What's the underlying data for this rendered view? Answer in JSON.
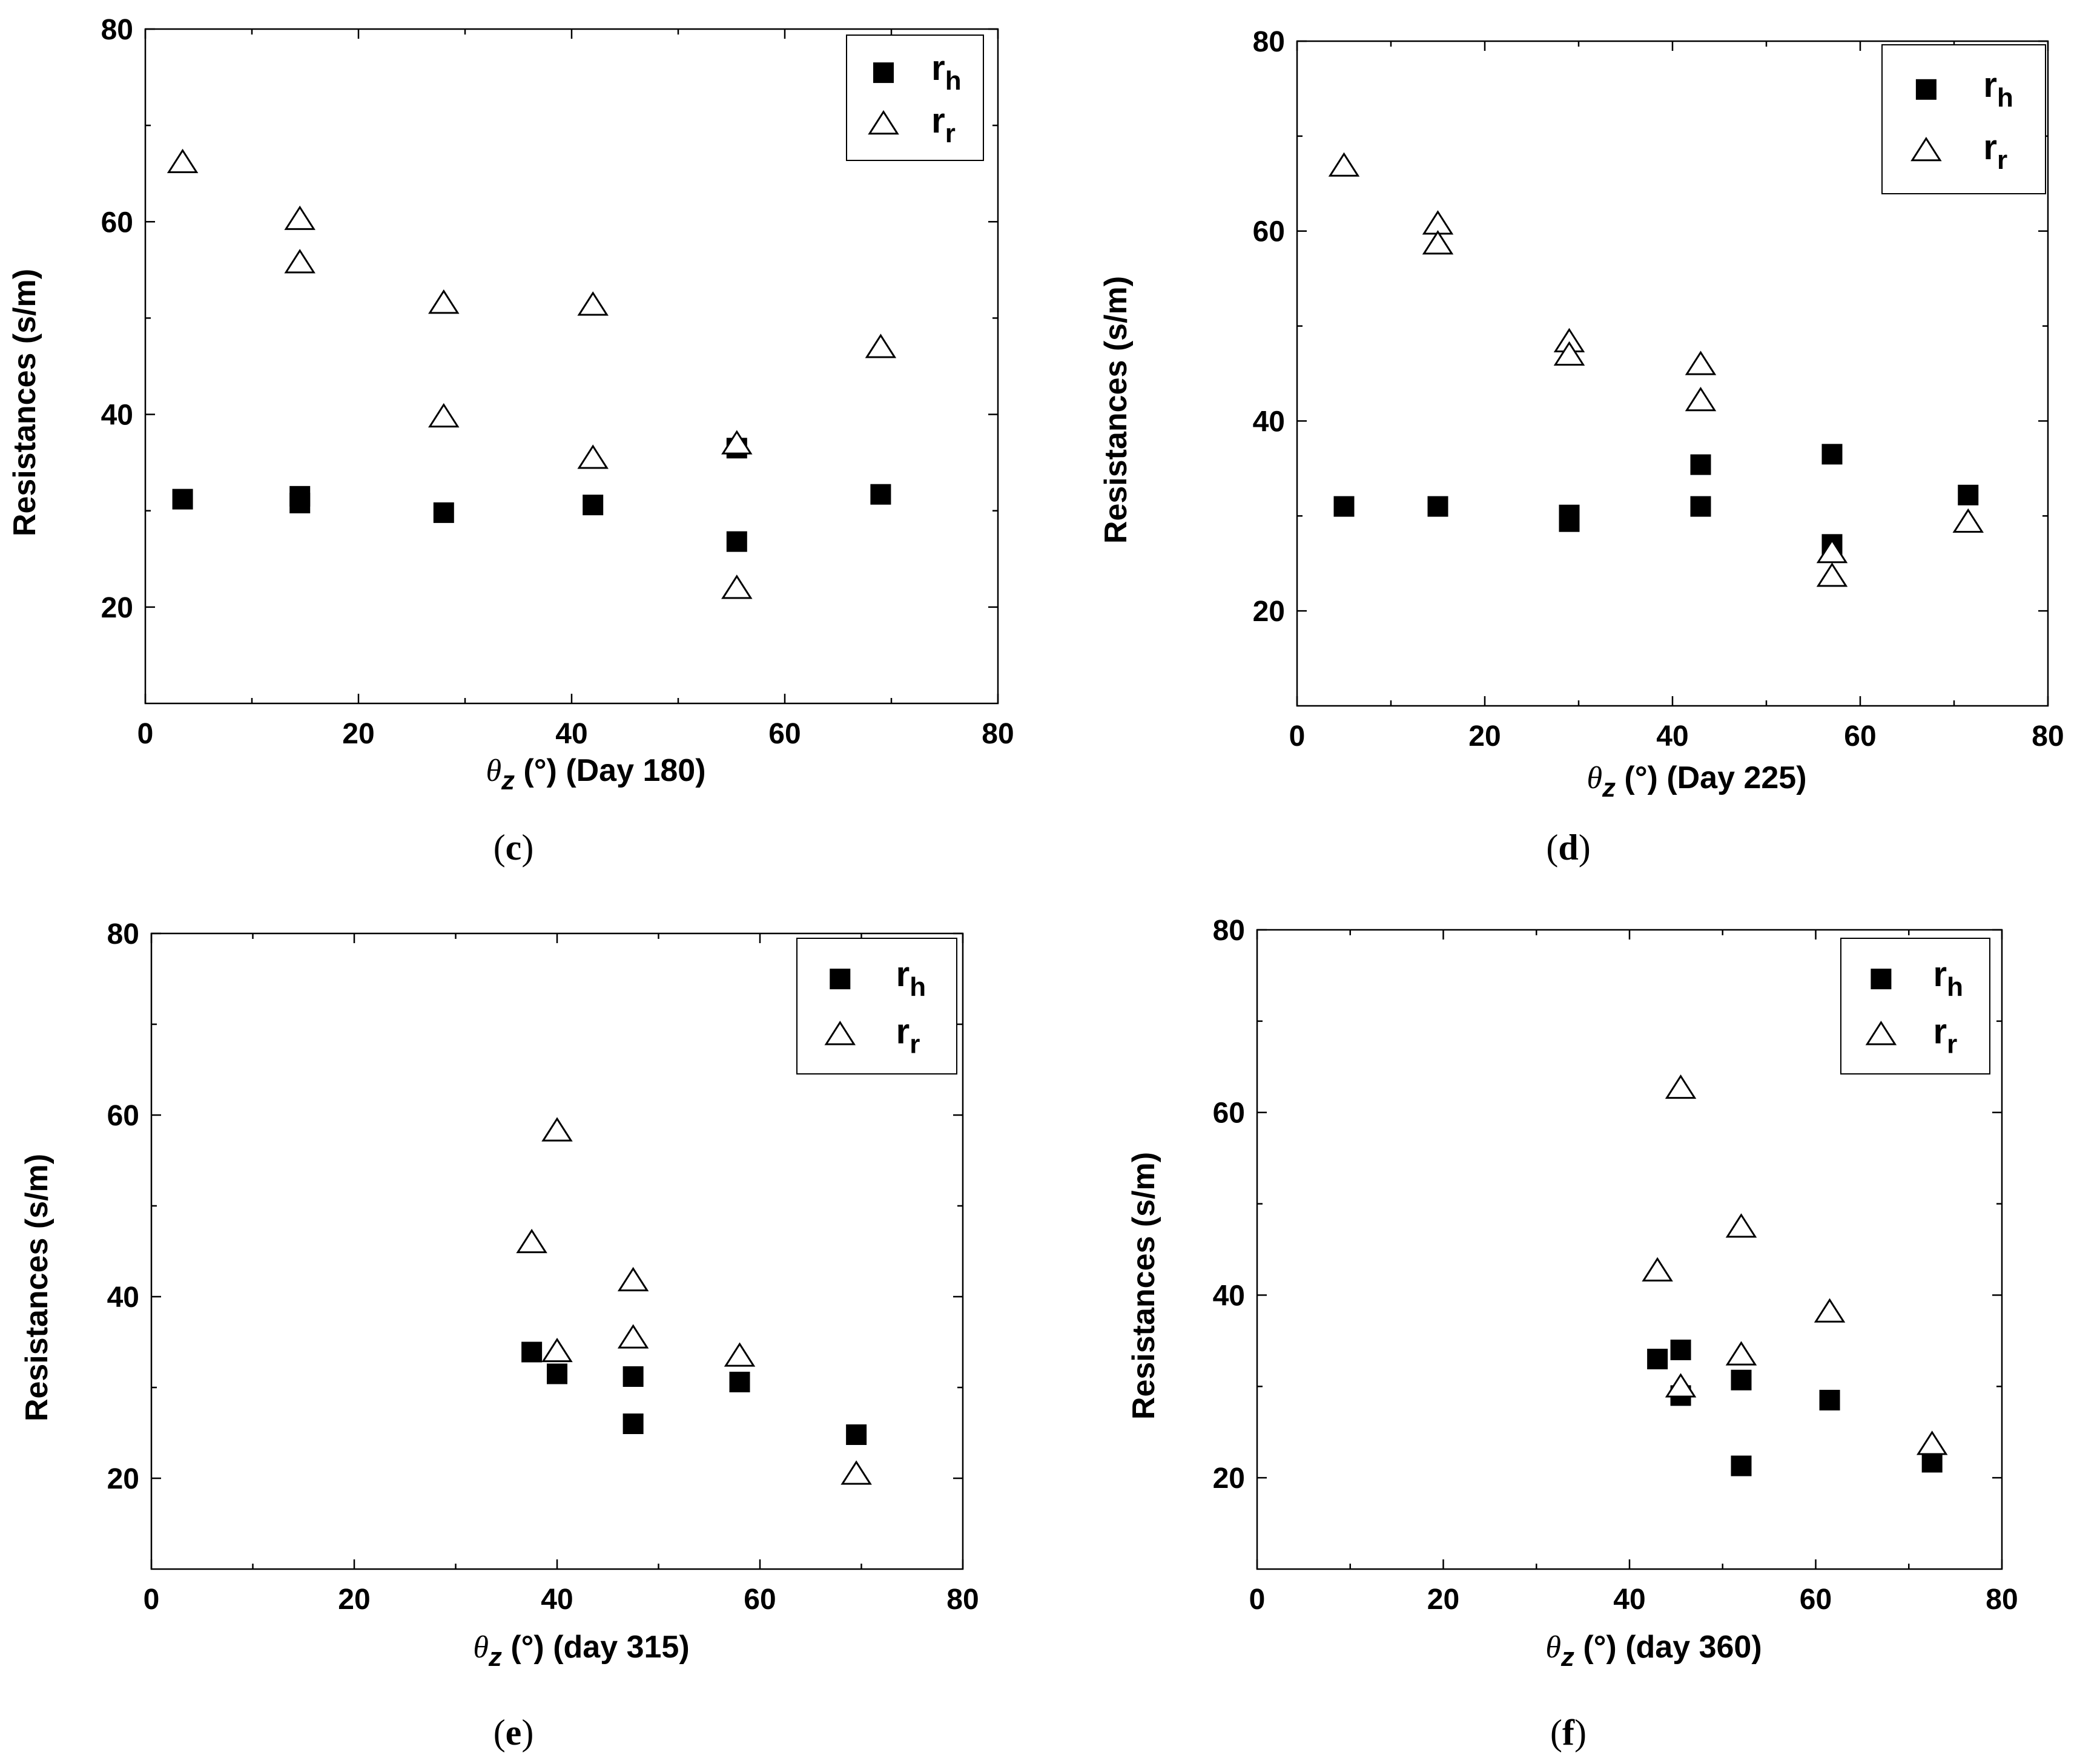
{
  "figure": {
    "panels": [
      {
        "caption": "(c)",
        "legend": {
          "items": [
            {
              "base": "r",
              "sub": "h",
              "marker": "square"
            },
            {
              "base": "r",
              "sub": "r",
              "marker": "triangle"
            }
          ]
        }
      },
      {
        "caption": "(d)",
        "legend": {
          "items": [
            {
              "base": "r",
              "sub": "h",
              "marker": "square"
            },
            {
              "base": "r",
              "sub": "r",
              "marker": "triangle"
            }
          ]
        }
      },
      {
        "caption": "(e)",
        "legend": {
          "items": [
            {
              "base": "r",
              "sub": "h",
              "marker": "square"
            },
            {
              "base": "r",
              "sub": "r",
              "marker": "triangle"
            }
          ]
        }
      },
      {
        "caption": "(f)",
        "legend": {
          "items": [
            {
              "base": "r",
              "sub": "h",
              "marker": "square"
            },
            {
              "base": "r",
              "sub": "r",
              "marker": "triangle"
            }
          ]
        }
      }
    ]
  },
  "chart_data": [
    {
      "type": "scatter",
      "title": "",
      "ylabel": "Resistances (s/m)",
      "xlabel": {
        "theta": "θ",
        "sub": "z",
        "unit": " (°) ",
        "suffix": "(Day 180)"
      },
      "xlim": [
        0,
        80
      ],
      "ylim": [
        10,
        80
      ],
      "xticks": [
        "0",
        "20",
        "40",
        "60",
        "80"
      ],
      "yticks": [
        "20",
        "40",
        "60",
        "80"
      ],
      "legend_position": "top-right",
      "series": [
        {
          "name": "rh",
          "marker": "square",
          "points": [
            [
              3.5,
              31.2
            ],
            [
              14.5,
              31.5
            ],
            [
              14.5,
              30.8
            ],
            [
              28,
              29.8
            ],
            [
              42,
              30.6
            ],
            [
              55.5,
              36.5
            ],
            [
              55.5,
              26.8
            ],
            [
              69,
              31.7
            ]
          ]
        },
        {
          "name": "rr",
          "marker": "triangle",
          "points": [
            [
              3.5,
              66
            ],
            [
              14.5,
              60.1
            ],
            [
              14.5,
              55.6
            ],
            [
              28,
              51.4
            ],
            [
              28,
              39.6
            ],
            [
              42,
              51.2
            ],
            [
              42,
              35.3
            ],
            [
              55.5,
              36.8
            ],
            [
              55.5,
              21.8
            ],
            [
              69,
              46.8
            ]
          ]
        }
      ]
    },
    {
      "type": "scatter",
      "title": "",
      "ylabel": "Resistances (s/m)",
      "xlabel": {
        "theta": "θ",
        "sub": "z",
        "unit": " (°) ",
        "suffix": "(Day 225)"
      },
      "xlim": [
        0,
        80
      ],
      "ylim": [
        10,
        80
      ],
      "xticks": [
        "0",
        "20",
        "40",
        "60",
        "80"
      ],
      "yticks": [
        "20",
        "40",
        "60",
        "80"
      ],
      "legend_position": "top-right",
      "series": [
        {
          "name": "rh",
          "marker": "square",
          "points": [
            [
              5,
              31
            ],
            [
              15,
              31
            ],
            [
              29,
              30.1
            ],
            [
              29,
              29.4
            ],
            [
              43,
              35.4
            ],
            [
              43,
              31
            ],
            [
              57,
              36.5
            ],
            [
              57,
              27
            ],
            [
              71.5,
              32.2
            ]
          ]
        },
        {
          "name": "rr",
          "marker": "triangle",
          "points": [
            [
              5,
              66.7
            ],
            [
              15,
              60.6
            ],
            [
              15,
              58.5
            ],
            [
              29,
              48.2
            ],
            [
              29,
              46.8
            ],
            [
              43,
              45.8
            ],
            [
              43,
              42
            ],
            [
              57,
              26
            ],
            [
              57,
              23.5
            ],
            [
              71.5,
              29.2
            ]
          ]
        }
      ]
    },
    {
      "type": "scatter",
      "title": "",
      "ylabel": "Resistances (s/m)",
      "xlabel": {
        "theta": "θ",
        "sub": "z",
        "unit": " (°) ",
        "suffix": "(day 315)"
      },
      "xlim": [
        0,
        80
      ],
      "ylim": [
        10,
        80
      ],
      "xticks": [
        "0",
        "20",
        "40",
        "60",
        "80"
      ],
      "yticks": [
        "20",
        "40",
        "60",
        "80"
      ],
      "legend_position": "top-right",
      "series": [
        {
          "name": "rh",
          "marker": "square",
          "points": [
            [
              37.5,
              33.9
            ],
            [
              40,
              31.5
            ],
            [
              47.5,
              31.2
            ],
            [
              47.5,
              26
            ],
            [
              58,
              30.6
            ],
            [
              69.5,
              24.8
            ]
          ]
        },
        {
          "name": "rr",
          "marker": "triangle",
          "points": [
            [
              37.5,
              45.8
            ],
            [
              40,
              58.1
            ],
            [
              40,
              33.8
            ],
            [
              47.5,
              41.6
            ],
            [
              47.5,
              35.3
            ],
            [
              58,
              33.3
            ],
            [
              69.5,
              20.3
            ]
          ]
        }
      ]
    },
    {
      "type": "scatter",
      "title": "",
      "ylabel": "Resistances (s/m)",
      "xlabel": {
        "theta": "θ",
        "sub": "z",
        "unit": " (°) ",
        "suffix": "(day 360)"
      },
      "xlim": [
        0,
        80
      ],
      "ylim": [
        10,
        80
      ],
      "xticks": [
        "0",
        "20",
        "40",
        "60",
        "80"
      ],
      "yticks": [
        "20",
        "40",
        "60",
        "80"
      ],
      "legend_position": "top-right",
      "series": [
        {
          "name": "rh",
          "marker": "square",
          "points": [
            [
              43,
              33
            ],
            [
              45.5,
              34
            ],
            [
              45.5,
              29
            ],
            [
              52,
              30.7
            ],
            [
              52,
              21.3
            ],
            [
              61.5,
              28.5
            ],
            [
              72.5,
              21.7
            ]
          ]
        },
        {
          "name": "rr",
          "marker": "triangle",
          "points": [
            [
              43,
              42.5
            ],
            [
              45.5,
              62.5
            ],
            [
              45.5,
              29.8
            ],
            [
              52,
              47.3
            ],
            [
              52,
              33.3
            ],
            [
              61.5,
              38
            ],
            [
              72.5,
              23.5
            ]
          ]
        }
      ]
    }
  ]
}
